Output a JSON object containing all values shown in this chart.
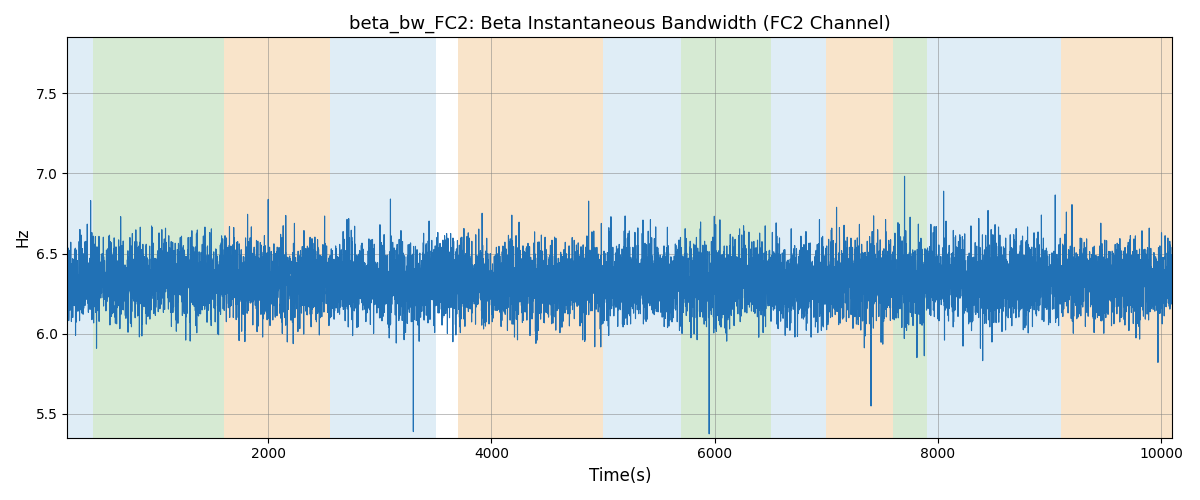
{
  "title": "beta_bw_FC2: Beta Instantaneous Bandwidth (FC2 Channel)",
  "xlabel": "Time(s)",
  "ylabel": "Hz",
  "xlim": [
    200,
    10100
  ],
  "ylim": [
    5.35,
    7.85
  ],
  "yticks": [
    5.5,
    6.0,
    6.5,
    7.0,
    7.5
  ],
  "line_color": "#2171b5",
  "line_width": 0.8,
  "bg_bands": [
    {
      "xmin": 200,
      "xmax": 430,
      "color": "#c5dff0"
    },
    {
      "xmin": 430,
      "xmax": 1600,
      "color": "#b5d9b0"
    },
    {
      "xmin": 1600,
      "xmax": 2550,
      "color": "#f5cfa0"
    },
    {
      "xmin": 2550,
      "xmax": 3500,
      "color": "#c5dff0"
    },
    {
      "xmin": 3700,
      "xmax": 5000,
      "color": "#f5cfa0"
    },
    {
      "xmin": 5000,
      "xmax": 5500,
      "color": "#c5dff0"
    },
    {
      "xmin": 5500,
      "xmax": 5700,
      "color": "#c5dff0"
    },
    {
      "xmin": 5700,
      "xmax": 6500,
      "color": "#b5d9b0"
    },
    {
      "xmin": 6500,
      "xmax": 7000,
      "color": "#c5dff0"
    },
    {
      "xmin": 7000,
      "xmax": 7600,
      "color": "#f5cfa0"
    },
    {
      "xmin": 7600,
      "xmax": 7900,
      "color": "#b5d9b0"
    },
    {
      "xmin": 7900,
      "xmax": 9100,
      "color": "#c5dff0"
    },
    {
      "xmin": 9100,
      "xmax": 10100,
      "color": "#f5cfa0"
    }
  ],
  "band_alpha": 0.55,
  "seed": 42,
  "n_points": 9901,
  "x_start": 200,
  "x_end": 10100,
  "signal_mean": 6.33,
  "signal_std": 0.13,
  "title_fontsize": 13
}
